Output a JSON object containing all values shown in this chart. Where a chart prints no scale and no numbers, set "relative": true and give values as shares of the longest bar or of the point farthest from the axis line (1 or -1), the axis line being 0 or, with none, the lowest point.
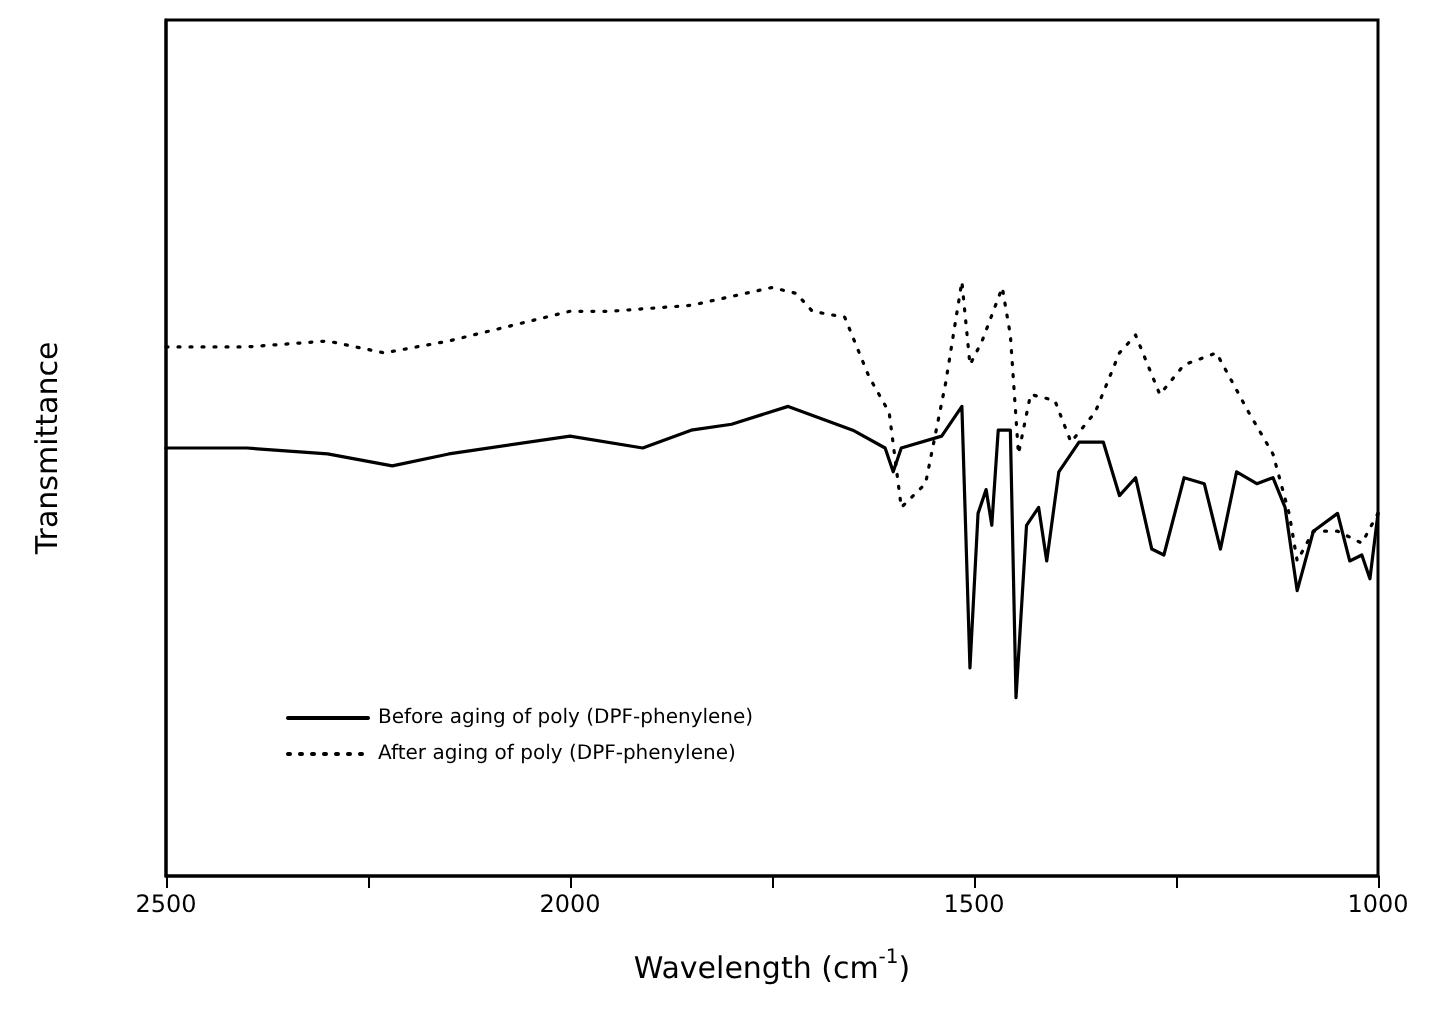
{
  "chart_data": {
    "type": "line",
    "relative": true,
    "xlabel": "Wavelength (cm$^{-1}$)",
    "ylabel": "Transmittance",
    "xlim": [
      2500,
      1000
    ],
    "xticks": [
      2500,
      {
        "value": 2250,
        "label": null
      },
      2000,
      {
        "value": 1750,
        "label": null
      },
      1500,
      {
        "value": 1250,
        "label": null
      },
      1000
    ],
    "legend": "bottom left",
    "grid": false,
    "marker": "none",
    "series": [
      {
        "name": "Before aging of poly (DPF-phenylene)",
        "color": "#000000",
        "line_style": "solid",
        "x": [
          2500,
          2400,
          2300,
          2220,
          2150,
          2000,
          1910,
          1850,
          1800,
          1730,
          1650,
          1610,
          1600,
          1590,
          1540,
          1515,
          1505,
          1495,
          1485,
          1478,
          1470,
          1455,
          1448,
          1435,
          1420,
          1410,
          1395,
          1370,
          1340,
          1320,
          1300,
          1280,
          1265,
          1240,
          1215,
          1195,
          1175,
          1150,
          1130,
          1115,
          1100,
          1080,
          1050,
          1035,
          1020,
          1010,
          1000
        ],
        "values": [
          0.72,
          0.72,
          0.71,
          0.69,
          0.71,
          0.74,
          0.72,
          0.75,
          0.76,
          0.79,
          0.75,
          0.72,
          0.68,
          0.72,
          0.74,
          0.79,
          0.35,
          0.61,
          0.65,
          0.59,
          0.75,
          0.75,
          0.3,
          0.59,
          0.62,
          0.53,
          0.68,
          0.73,
          0.73,
          0.64,
          0.67,
          0.55,
          0.54,
          0.67,
          0.66,
          0.55,
          0.68,
          0.66,
          0.67,
          0.62,
          0.48,
          0.58,
          0.61,
          0.53,
          0.54,
          0.5,
          0.61
        ]
      },
      {
        "name": "After aging of poly (DPF-phenylene)",
        "color": "#000000",
        "line_style": "dotted",
        "x": [
          2500,
          2400,
          2300,
          2230,
          2150,
          2000,
          1950,
          1850,
          1750,
          1720,
          1700,
          1660,
          1630,
          1605,
          1590,
          1560,
          1535,
          1515,
          1505,
          1490,
          1465,
          1455,
          1445,
          1430,
          1400,
          1380,
          1350,
          1320,
          1300,
          1270,
          1240,
          1200,
          1160,
          1130,
          1110,
          1100,
          1080,
          1050,
          1020,
          1000
        ],
        "values": [
          0.89,
          0.89,
          0.9,
          0.88,
          0.9,
          0.95,
          0.95,
          0.96,
          0.99,
          0.98,
          0.95,
          0.94,
          0.84,
          0.78,
          0.62,
          0.66,
          0.83,
          1.0,
          0.86,
          0.9,
          0.99,
          0.91,
          0.71,
          0.81,
          0.8,
          0.73,
          0.78,
          0.88,
          0.91,
          0.81,
          0.86,
          0.88,
          0.78,
          0.71,
          0.61,
          0.53,
          0.58,
          0.58,
          0.56,
          0.61
        ]
      }
    ]
  }
}
